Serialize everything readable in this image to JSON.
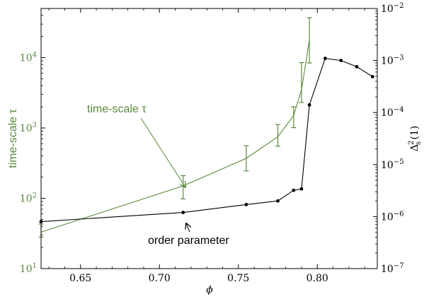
{
  "chart_data": {
    "type": "line",
    "x": {
      "label": "ϕ",
      "lim": [
        0.625,
        0.838
      ],
      "ticks": [
        0.65,
        0.7,
        0.75,
        0.8
      ],
      "tick_labels": [
        "0.65",
        "0.70",
        "0.75",
        "0.80"
      ]
    },
    "y_left": {
      "label": "time-scale τ",
      "scale": "log",
      "lim": [
        10,
        50000
      ],
      "ticks": [
        10,
        100,
        1000,
        10000
      ],
      "tick_labels": [
        {
          "base": "10",
          "exp": "1"
        },
        {
          "base": "10",
          "exp": "2"
        },
        {
          "base": "10",
          "exp": "3"
        },
        {
          "base": "10",
          "exp": "4"
        }
      ],
      "color": "#5a8a3c"
    },
    "y_right": {
      "label": {
        "main": "Δ",
        "sub": "s",
        "sup": "2",
        "arg": "(1)"
      },
      "scale": "log",
      "lim": [
        1e-07,
        0.01
      ],
      "ticks": [
        1e-07,
        1e-06,
        1e-05,
        0.0001,
        0.001,
        0.01
      ],
      "tick_labels": [
        {
          "base": "10",
          "exp": "−7"
        },
        {
          "base": "10",
          "exp": "−6"
        },
        {
          "base": "10",
          "exp": "−5"
        },
        {
          "base": "10",
          "exp": "−4"
        },
        {
          "base": "10",
          "exp": "−3"
        },
        {
          "base": "10",
          "exp": "−2"
        }
      ],
      "color": "#000000"
    },
    "series": [
      {
        "name": "time-scale τ",
        "axis": "left",
        "color": "#5a8a3c",
        "style": "errorbar-line",
        "points": [
          {
            "x": 0.625,
            "y": 33,
            "lo": 28,
            "hi": 43
          },
          {
            "x": 0.715,
            "y": 150,
            "lo": 98,
            "hi": 210
          },
          {
            "x": 0.755,
            "y": 370,
            "lo": 245,
            "hi": 560
          },
          {
            "x": 0.775,
            "y": 750,
            "lo": 550,
            "hi": 1120
          },
          {
            "x": 0.785,
            "y": 1500,
            "lo": 1010,
            "hi": 2000
          },
          {
            "x": 0.79,
            "y": 3500,
            "lo": 2300,
            "hi": 8500
          },
          {
            "x": 0.795,
            "y": 18000,
            "lo": 8400,
            "hi": 37000
          }
        ]
      },
      {
        "name": "order parameter",
        "axis": "right",
        "color": "#000000",
        "style": "line-dots",
        "points": [
          {
            "x": 0.625,
            "y": 8e-07
          },
          {
            "x": 0.715,
            "y": 1.2e-06
          },
          {
            "x": 0.755,
            "y": 1.7e-06
          },
          {
            "x": 0.775,
            "y": 2e-06
          },
          {
            "x": 0.785,
            "y": 3.2e-06
          },
          {
            "x": 0.79,
            "y": 3.4e-06
          },
          {
            "x": 0.795,
            "y": 0.00014
          },
          {
            "x": 0.805,
            "y": 0.0011
          },
          {
            "x": 0.815,
            "y": 0.001
          },
          {
            "x": 0.825,
            "y": 0.00076
          },
          {
            "x": 0.835,
            "y": 0.00049
          }
        ]
      }
    ],
    "annotations": [
      {
        "text": "time-scale τ",
        "color": "#5a8a3c",
        "points_to": "time-scale τ"
      },
      {
        "text": "order parameter",
        "color": "#000000",
        "points_to": "order parameter"
      }
    ]
  }
}
